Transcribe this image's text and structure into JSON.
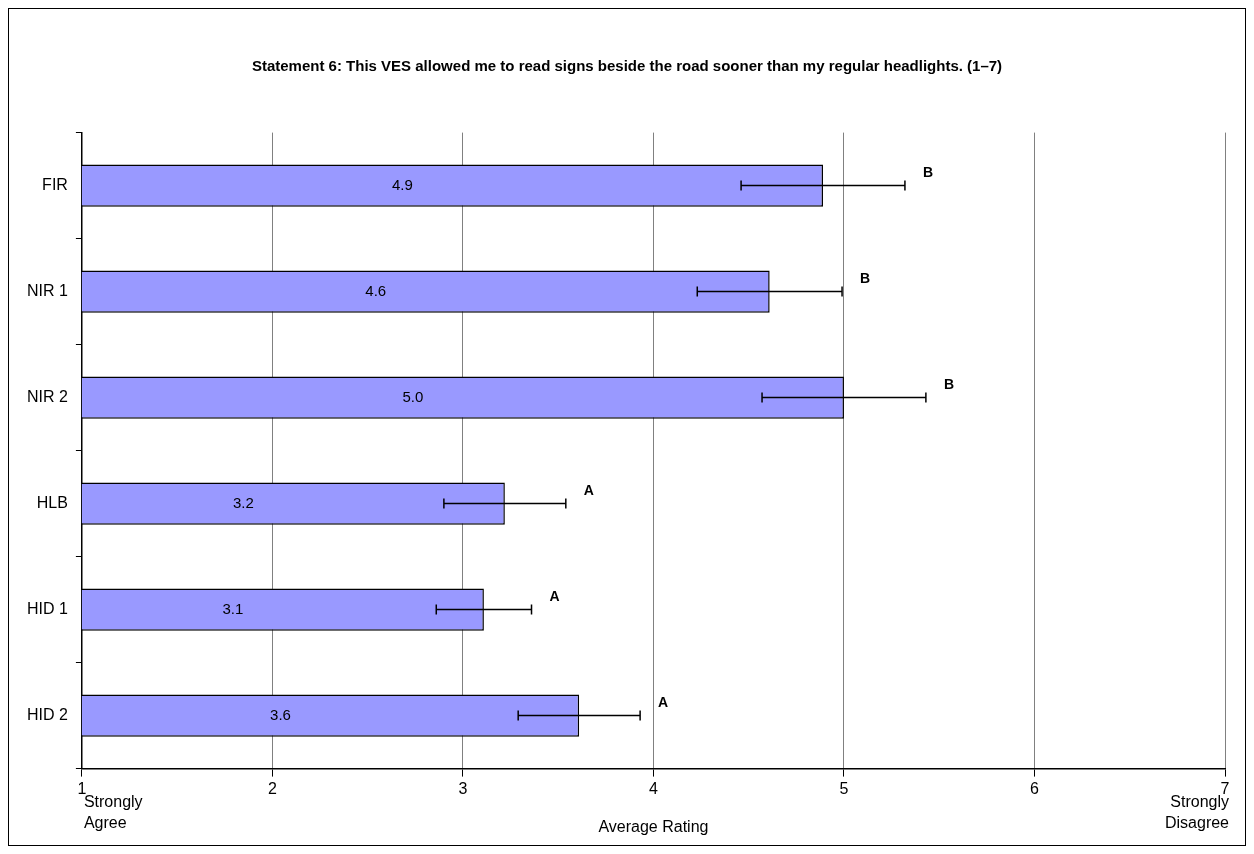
{
  "chart_data": {
    "type": "bar",
    "orientation": "horizontal",
    "title": "Statement 6: This VES allowed me to read signs beside the road sooner than my regular headlights. (1–7)",
    "xlabel": "Average Rating",
    "categories": [
      "FIR",
      "NIR 1",
      "NIR 2",
      "HLB",
      "HID 1",
      "HID 2"
    ],
    "values": [
      4.89,
      4.61,
      5.0,
      3.22,
      3.11,
      3.61
    ],
    "value_labels": [
      "4.9",
      "4.6",
      "5.0",
      "3.2",
      "3.1",
      "3.6"
    ],
    "errors": [
      0.43,
      0.38,
      0.43,
      0.32,
      0.25,
      0.32
    ],
    "color": "#9999ff",
    "xlim": [
      1,
      7
    ],
    "xticks": [
      1,
      2,
      3,
      4,
      5,
      6,
      7
    ],
    "grid": "x",
    "annotations": [
      "Strongly Agree",
      "B",
      "B",
      "B",
      "A",
      "A",
      "A",
      "Strongly Disagree"
    ]
  }
}
